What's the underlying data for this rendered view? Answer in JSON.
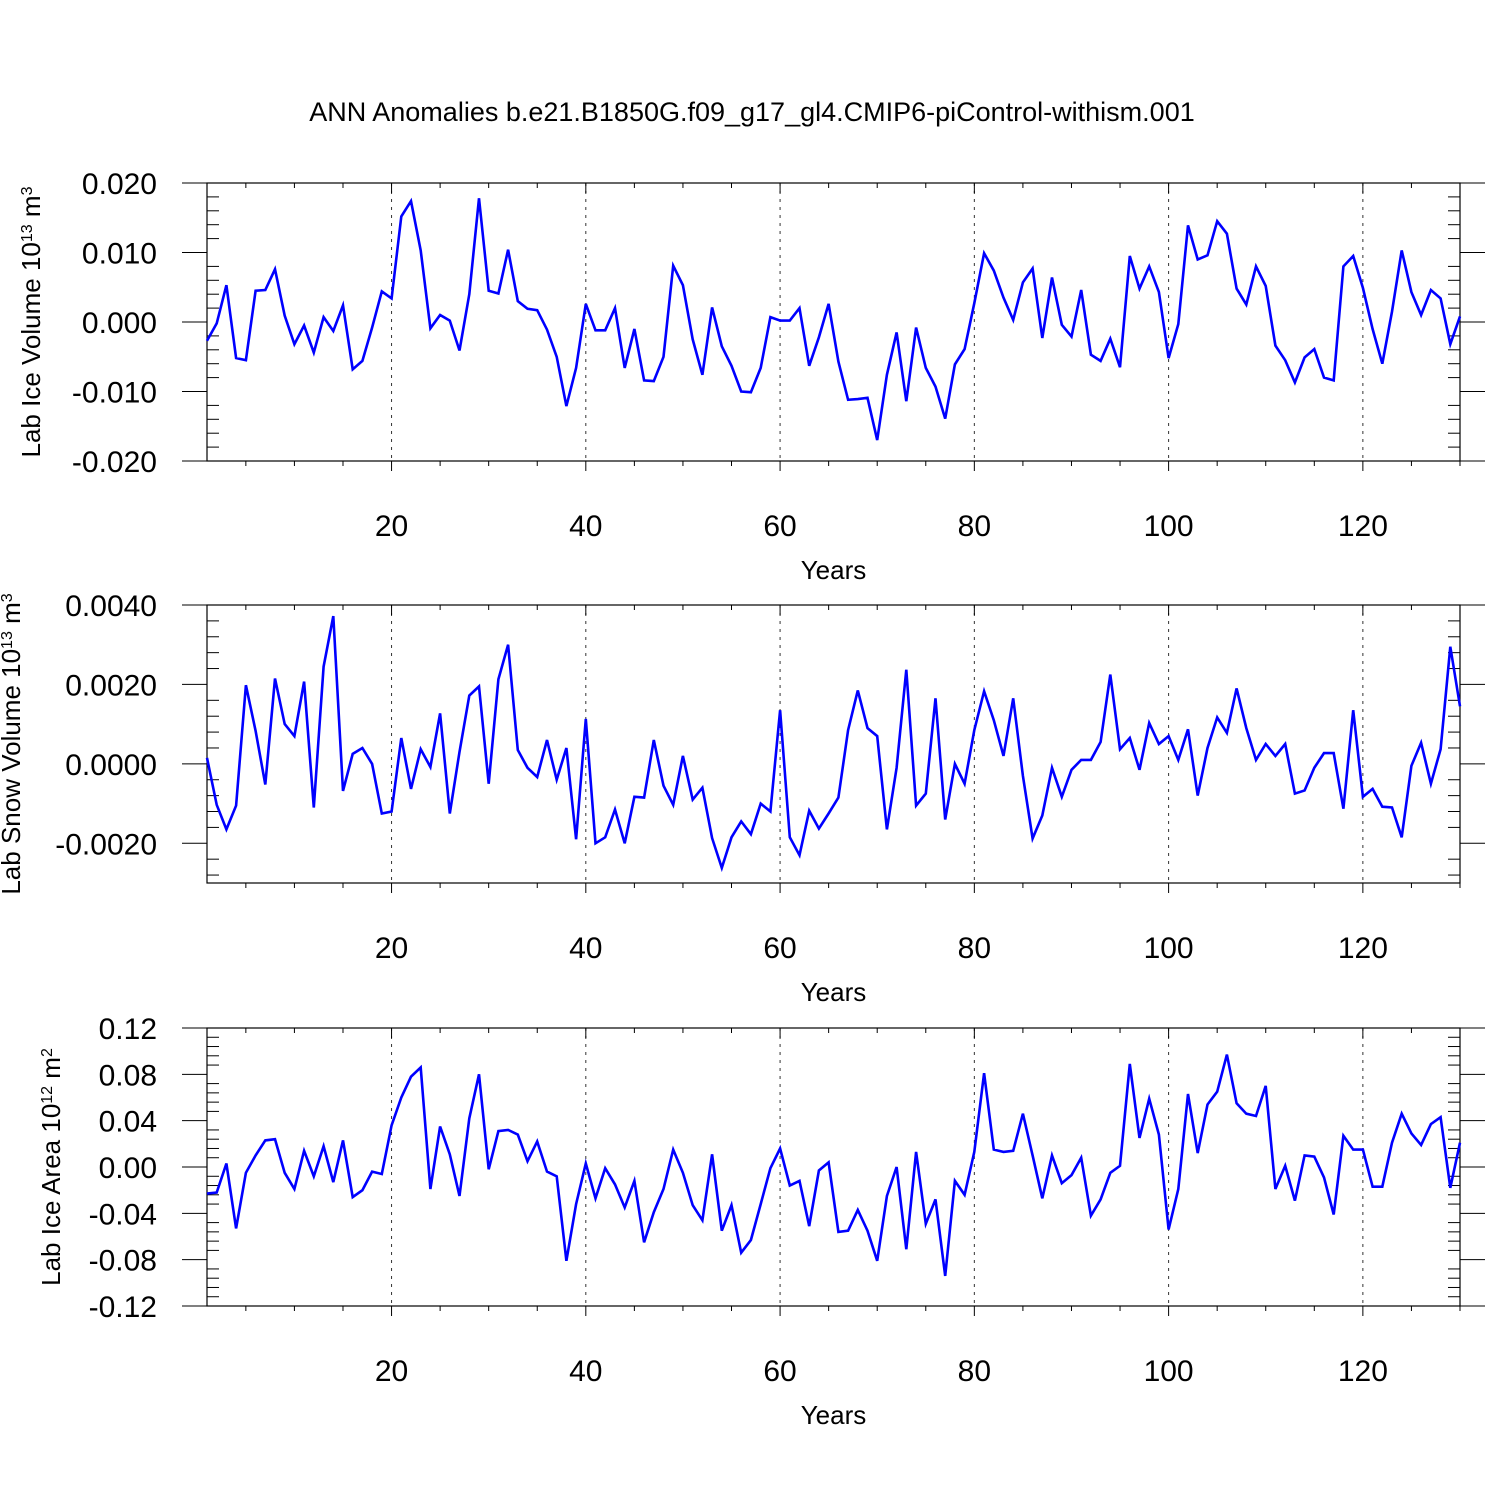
{
  "figure": {
    "title": "ANN Anomalies b.e21.B1850G.f09_g17_gl4.CMIP6-piControl-withism.001"
  },
  "colors": {
    "line": "#0000ff",
    "axes": "#000000",
    "grid": "#000000",
    "background": "#ffffff"
  },
  "chart_data": [
    {
      "type": "line",
      "ylabel": "Lab Ice Volume 10",
      "ylabel_exp": "13",
      "ylabel_unit": " m",
      "ylabel_unit_exp": "3",
      "xlabel": "Years",
      "xlim": [
        1,
        130
      ],
      "ylim": [
        -0.02,
        0.02
      ],
      "yticks": [
        -0.02,
        -0.01,
        0.0,
        0.01,
        0.02
      ],
      "ytick_labels": [
        "-0.020",
        "-0.010",
        "0.000",
        "0.010",
        "0.020"
      ],
      "xticks": [
        20,
        40,
        60,
        80,
        100,
        120
      ],
      "xtick_labels": [
        "20",
        "40",
        "60",
        "80",
        "100",
        "120"
      ],
      "grid": "vertical dashed at 20-year ticks",
      "series": [
        {
          "x_start": 1,
          "values": [
            -0.0027,
            -0.0002,
            0.0053,
            -0.0052,
            -0.0055,
            0.0045,
            0.0046,
            0.0076,
            0.0009,
            -0.0032,
            -0.0005,
            -0.0044,
            0.0007,
            -0.0013,
            0.0024,
            -0.0068,
            -0.0056,
            -0.0008,
            0.0044,
            0.0034,
            0.0152,
            0.0174,
            0.0103,
            -0.0009,
            0.001,
            0.0002,
            -0.0041,
            0.004,
            0.0178,
            0.0045,
            0.0041,
            0.0104,
            0.003,
            0.0019,
            0.0017,
            -0.0011,
            -0.005,
            -0.0121,
            -0.0066,
            0.0026,
            -0.0012,
            -0.0012,
            0.002,
            -0.0066,
            -0.001,
            -0.0084,
            -0.0085,
            -0.005,
            0.0081,
            0.0053,
            -0.0025,
            -0.0076,
            0.0021,
            -0.0035,
            -0.0063,
            -0.01,
            -0.0101,
            -0.0066,
            0.0007,
            0.0002,
            0.0002,
            0.002,
            -0.0063,
            -0.0022,
            0.0026,
            -0.0057,
            -0.0112,
            -0.0111,
            -0.0109,
            -0.017,
            -0.0076,
            -0.0015,
            -0.0114,
            -0.0008,
            -0.0066,
            -0.0093,
            -0.0139,
            -0.0061,
            -0.0039,
            0.0027,
            0.0099,
            0.0074,
            0.0035,
            0.0003,
            0.0057,
            0.0077,
            -0.0023,
            0.0064,
            -0.0004,
            -0.0021,
            0.0046,
            -0.0047,
            -0.0056,
            -0.0024,
            -0.0065,
            0.0095,
            0.0048,
            0.008,
            0.0043,
            -0.0052,
            -0.0003,
            0.0139,
            0.009,
            0.0096,
            0.0145,
            0.0127,
            0.0048,
            0.0025,
            0.008,
            0.0052,
            -0.0034,
            -0.0055,
            -0.0087,
            -0.0051,
            -0.0039,
            -0.008,
            -0.0084,
            0.008,
            0.0095,
            0.0049,
            -0.001,
            -0.006,
            0.0015,
            0.0103,
            0.0043,
            0.001,
            0.0046,
            0.0034,
            -0.0032,
            0.0008
          ]
        }
      ]
    },
    {
      "type": "line",
      "ylabel": "Lab Snow Volume 10",
      "ylabel_exp": "13",
      "ylabel_unit": " m",
      "ylabel_unit_exp": "3",
      "xlabel": "Years",
      "xlim": [
        1,
        130
      ],
      "ylim": [
        -0.003,
        0.004
      ],
      "yticks": [
        -0.002,
        0.0,
        0.002,
        0.004
      ],
      "ytick_labels": [
        "-0.0020",
        "0.0000",
        "0.0020",
        "0.0040"
      ],
      "xticks": [
        20,
        40,
        60,
        80,
        100,
        120
      ],
      "xtick_labels": [
        "20",
        "40",
        "60",
        "80",
        "100",
        "120"
      ],
      "grid": "vertical dashed at 20-year ticks",
      "series": [
        {
          "x_start": 1,
          "values": [
            0.00015,
            -0.00103,
            -0.00165,
            -0.00105,
            0.00198,
            0.00083,
            -0.00052,
            0.00215,
            0.001,
            0.0007,
            0.00207,
            -0.0011,
            0.00245,
            0.00372,
            -0.00068,
            0.00025,
            0.0004,
            0.0,
            -0.00125,
            -0.0012,
            0.00065,
            -0.00063,
            0.00037,
            -8e-05,
            0.00127,
            -0.00125,
            0.0003,
            0.00172,
            0.00195,
            -0.0005,
            0.00213,
            0.003,
            0.00035,
            -0.0001,
            -0.00033,
            0.0006,
            -0.0004,
            0.0004,
            -0.0019,
            0.00113,
            -0.002,
            -0.00185,
            -0.00115,
            -0.002,
            -0.00083,
            -0.00085,
            0.0006,
            -0.00055,
            -0.00103,
            0.0002,
            -0.0009,
            -0.0006,
            -0.00187,
            -0.00262,
            -0.00185,
            -0.00145,
            -0.00177,
            -0.001,
            -0.0012,
            0.00135,
            -0.00185,
            -0.0023,
            -0.00118,
            -0.00163,
            -0.00125,
            -0.00085,
            0.00085,
            0.00185,
            0.0009,
            0.0007,
            -0.00165,
            -0.0001,
            0.00237,
            -0.00105,
            -0.00075,
            0.00165,
            -0.0014,
            0.0,
            -0.0005,
            0.00085,
            0.00183,
            0.0011,
            0.0002,
            0.00165,
            -0.0003,
            -0.00188,
            -0.0013,
            -0.0001,
            -0.00083,
            -0.00015,
            0.0001,
            0.0001,
            0.00055,
            0.00225,
            0.00037,
            0.00065,
            -0.00015,
            0.00103,
            0.0005,
            0.0007,
            0.0001,
            0.00087,
            -0.0008,
            0.0004,
            0.00117,
            0.00078,
            0.0019,
            0.0009,
            0.0001,
            0.0005,
            0.0002,
            0.0005,
            -0.00075,
            -0.00067,
            -0.0001,
            0.00027,
            0.00027,
            -0.00113,
            0.00135,
            -0.00083,
            -0.00063,
            -0.00108,
            -0.0011,
            -0.00185,
            -5e-05,
            0.00053,
            -0.0005,
            0.00037,
            0.00295,
            0.00145
          ]
        }
      ]
    },
    {
      "type": "line",
      "ylabel": "Lab Ice Area 10",
      "ylabel_exp": "12",
      "ylabel_unit": " m",
      "ylabel_unit_exp": "2",
      "xlabel": "Years",
      "xlim": [
        1,
        130
      ],
      "ylim": [
        -0.12,
        0.12
      ],
      "yticks": [
        -0.12,
        -0.08,
        -0.04,
        0.0,
        0.04,
        0.08,
        0.12
      ],
      "ytick_labels": [
        "-0.12",
        "-0.08",
        "-0.04",
        "0.00",
        "0.04",
        "0.08",
        "0.12"
      ],
      "xticks": [
        20,
        40,
        60,
        80,
        100,
        120
      ],
      "xtick_labels": [
        "20",
        "40",
        "60",
        "80",
        "100",
        "120"
      ],
      "grid": "vertical dashed at 20-year ticks",
      "series": [
        {
          "x_start": 1,
          "values": [
            -0.023,
            -0.022,
            0.003,
            -0.053,
            -0.005,
            0.01,
            0.023,
            0.024,
            -0.005,
            -0.019,
            0.014,
            -0.008,
            0.018,
            -0.013,
            0.023,
            -0.026,
            -0.02,
            -0.004,
            -0.006,
            0.036,
            0.06,
            0.078,
            0.086,
            -0.019,
            0.035,
            0.011,
            -0.025,
            0.042,
            0.08,
            -0.002,
            0.031,
            0.032,
            0.028,
            0.005,
            0.022,
            -0.004,
            -0.008,
            -0.081,
            -0.032,
            0.003,
            -0.027,
            -0.001,
            -0.015,
            -0.035,
            -0.012,
            -0.065,
            -0.039,
            -0.019,
            0.015,
            -0.005,
            -0.033,
            -0.046,
            0.011,
            -0.055,
            -0.033,
            -0.074,
            -0.063,
            -0.032,
            -0.001,
            0.016,
            -0.016,
            -0.012,
            -0.051,
            -0.003,
            0.004,
            -0.056,
            -0.055,
            -0.037,
            -0.055,
            -0.081,
            -0.025,
            0.0,
            -0.071,
            0.013,
            -0.049,
            -0.028,
            -0.094,
            -0.012,
            -0.024,
            0.013,
            0.081,
            0.015,
            0.013,
            0.014,
            0.046,
            0.01,
            -0.027,
            0.01,
            -0.014,
            -0.007,
            0.008,
            -0.042,
            -0.028,
            -0.005,
            0.001,
            0.089,
            0.025,
            0.059,
            0.028,
            -0.054,
            -0.019,
            0.063,
            0.012,
            0.054,
            0.065,
            0.097,
            0.055,
            0.046,
            0.044,
            0.07,
            -0.019,
            0.001,
            -0.029,
            0.01,
            0.009,
            -0.009,
            -0.041,
            0.027,
            0.015,
            0.015,
            -0.017,
            -0.017,
            0.021,
            0.046,
            0.029,
            0.019,
            0.037,
            0.043,
            -0.018,
            0.021
          ]
        }
      ]
    }
  ]
}
